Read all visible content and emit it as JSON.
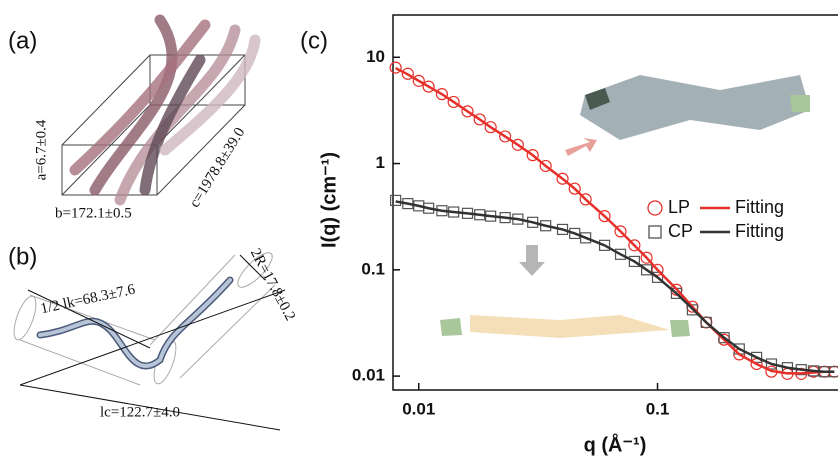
{
  "panels": {
    "a": {
      "label": "(a)",
      "dimensions": [
        "a=6.7±0.4",
        "b=172.1±0.5",
        "c=1978.8±39.0"
      ]
    },
    "b": {
      "label": "(b)",
      "dimensions": [
        "1/2 lk=68.3±7.6",
        "2R=17.8±0.2",
        "lc=122.7±4.0"
      ]
    }
  },
  "chart_data": {
    "type": "scatter",
    "panel_label": "(c)",
    "x_label": "q (Å⁻¹)",
    "y_label": "I(q) (cm⁻¹)",
    "log_x": true,
    "log_y": true,
    "legend": "right",
    "xlim": [
      0.0078,
      0.57
    ],
    "xticks": [
      0.01,
      0.1
    ],
    "ylim": [
      0.0074,
      25
    ],
    "yticks": [
      10,
      1,
      0.1,
      0.01
    ],
    "x": [
      0.008,
      0.009,
      0.01,
      0.011,
      0.0125,
      0.014,
      0.016,
      0.018,
      0.02,
      0.023,
      0.026,
      0.03,
      0.034,
      0.04,
      0.045,
      0.05,
      0.06,
      0.07,
      0.08,
      0.09,
      0.1,
      0.12,
      0.14,
      0.16,
      0.19,
      0.22,
      0.26,
      0.3,
      0.35,
      0.4,
      0.45,
      0.5,
      0.55
    ],
    "series": [
      {
        "name": "LP",
        "color": "#e8302a",
        "marker": "circle",
        "values": [
          8,
          7.0,
          6.0,
          5.3,
          4.5,
          3.8,
          3.1,
          2.6,
          2.2,
          1.8,
          1.5,
          1.2,
          0.95,
          0.72,
          0.58,
          0.46,
          0.32,
          0.23,
          0.17,
          0.13,
          0.1,
          0.065,
          0.045,
          0.032,
          0.022,
          0.016,
          0.013,
          0.011,
          0.0105,
          0.0105,
          0.011,
          0.011,
          0.011
        ]
      },
      {
        "name": "CP",
        "color": "#555555",
        "marker": "square",
        "values": [
          0.45,
          0.42,
          0.4,
          0.38,
          0.36,
          0.35,
          0.34,
          0.33,
          0.32,
          0.31,
          0.3,
          0.28,
          0.26,
          0.24,
          0.22,
          0.2,
          0.17,
          0.14,
          0.12,
          0.1,
          0.085,
          0.06,
          0.042,
          0.032,
          0.023,
          0.018,
          0.015,
          0.013,
          0.012,
          0.0115,
          0.0112,
          0.011,
          0.011
        ]
      },
      {
        "name": "Fitting",
        "color": "#e8302a",
        "marker": "line",
        "values": [
          7.9,
          6.9,
          6.0,
          5.3,
          4.5,
          3.8,
          3.1,
          2.6,
          2.2,
          1.8,
          1.5,
          1.2,
          0.95,
          0.72,
          0.58,
          0.46,
          0.32,
          0.23,
          0.17,
          0.13,
          0.1,
          0.066,
          0.045,
          0.032,
          0.022,
          0.016,
          0.013,
          0.0112,
          0.0106,
          0.0106,
          0.0108,
          0.011,
          0.011
        ]
      },
      {
        "name": "Fitting",
        "color": "#333333",
        "marker": "line",
        "values": [
          0.44,
          0.42,
          0.4,
          0.38,
          0.36,
          0.35,
          0.34,
          0.33,
          0.32,
          0.31,
          0.3,
          0.28,
          0.26,
          0.24,
          0.22,
          0.2,
          0.17,
          0.14,
          0.12,
          0.1,
          0.085,
          0.06,
          0.043,
          0.032,
          0.023,
          0.018,
          0.015,
          0.013,
          0.012,
          0.0115,
          0.0112,
          0.011,
          0.011
        ]
      }
    ]
  }
}
